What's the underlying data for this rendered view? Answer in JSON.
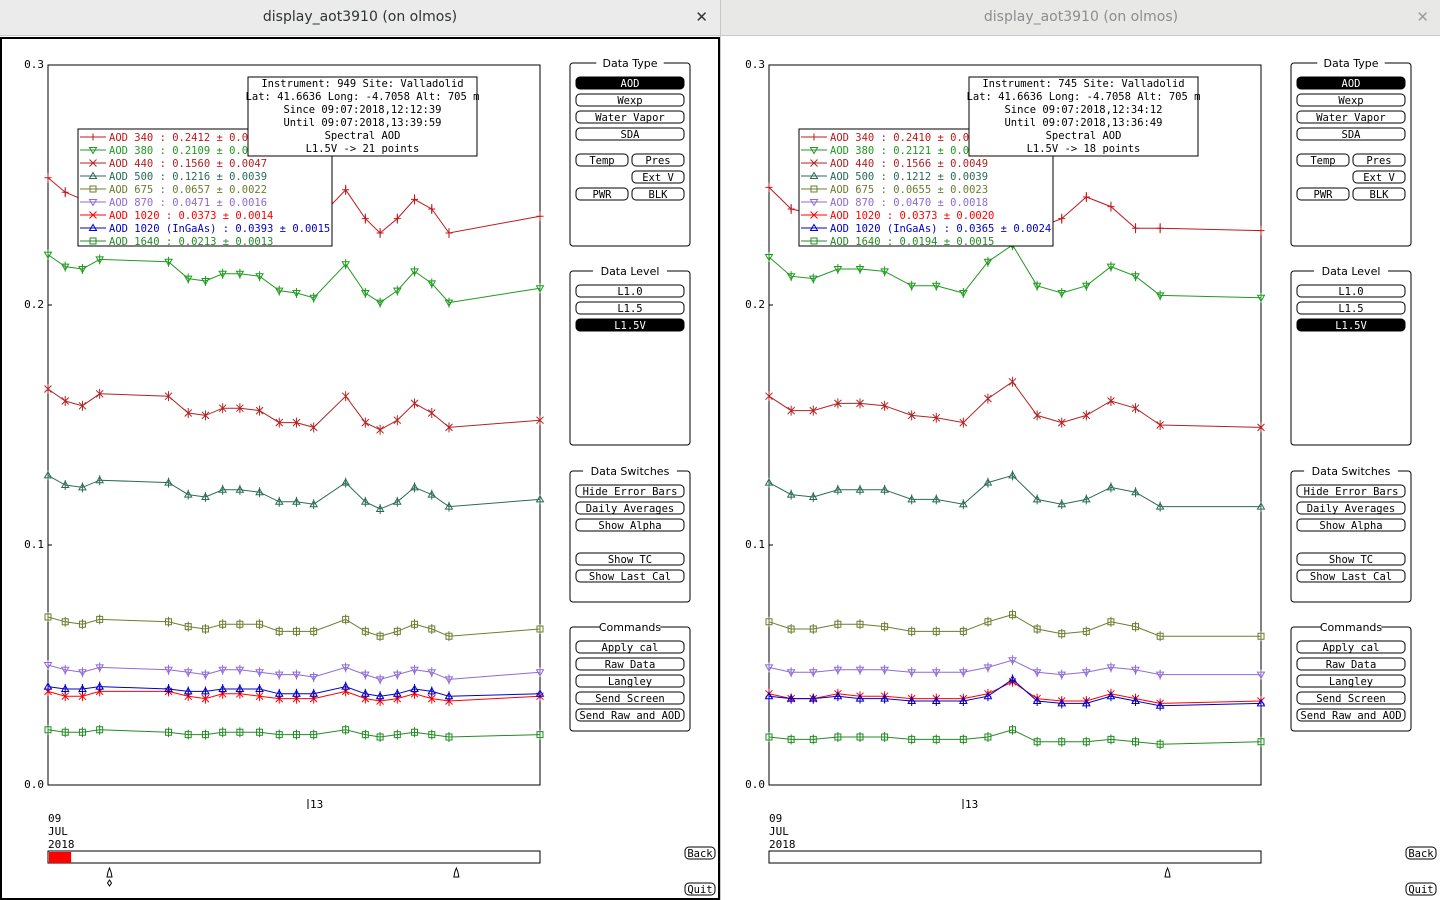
{
  "windows": [
    {
      "title": "display_aot3910 (on olmos)",
      "close": "✕",
      "active": true,
      "yticks": [
        "0.0",
        "0.1",
        "0.2",
        "0.3"
      ],
      "xtick": "13",
      "date": [
        "09",
        "JUL",
        "2018"
      ],
      "info": [
        "Instrument: 949 Site: Valladolid",
        "Lat: 41.6636 Long: -4.7058 Alt: 705 m",
        "Since 09:07:2018,12:12:39",
        "Until 09:07:2018,13:39:59",
        "Spectral AOD",
        "L1.5V -> 21 points"
      ],
      "legend": [
        {
          "label": "AOD 340   : 0.2412 ± 0.0",
          "color": "#c0171a",
          "marker": "plus"
        },
        {
          "label": "AOD 380   : 0.2109 ± 0.0",
          "color": "#1f9a1f",
          "marker": "tri-down"
        },
        {
          "label": "AOD 440   : 0.1560 ± 0.0047",
          "color": "#b22222",
          "marker": "x"
        },
        {
          "label": "AOD 500   : 0.1216 ± 0.0039",
          "color": "#2a6b57",
          "marker": "tri-up"
        },
        {
          "label": "AOD 675   : 0.0657 ± 0.0022",
          "color": "#6b7d2e",
          "marker": "square"
        },
        {
          "label": "AOD 870   : 0.0471 ± 0.0016",
          "color": "#8e6bd6",
          "marker": "tri-down"
        },
        {
          "label": "AOD 1020  : 0.0373 ± 0.0014",
          "color": "#ff0000",
          "marker": "x"
        },
        {
          "label": "AOD 1020 (InGaAs)  : 0.0393 ± 0.0015",
          "color": "#0000cc",
          "marker": "tri-up"
        },
        {
          "label": "AOD 1640  : 0.0213 ± 0.0013",
          "color": "#238b23",
          "marker": "square"
        }
      ],
      "panels": {
        "data_type": {
          "title": "Data Type",
          "rows": [
            [
              {
                "label": "AOD",
                "selected": true
              }
            ],
            [
              {
                "label": "Wexp"
              }
            ],
            [
              {
                "label": "Water Vapor"
              }
            ],
            [
              {
                "label": "SDA"
              }
            ],
            [
              {
                "label": "Temp"
              },
              {
                "label": "Pres"
              }
            ],
            [
              {
                "label": ""
              },
              {
                "label": "Ext V"
              }
            ],
            [
              {
                "label": "PWR"
              },
              {
                "label": "BLK"
              }
            ]
          ]
        },
        "data_level": {
          "title": "Data Level",
          "rows": [
            [
              {
                "label": "L1.0"
              }
            ],
            [
              {
                "label": "L1.5"
              }
            ],
            [
              {
                "label": "L1.5V",
                "selected": true
              }
            ]
          ]
        },
        "data_switches": {
          "title": "Data Switches",
          "rows": [
            [
              {
                "label": "Hide Error Bars"
              }
            ],
            [
              {
                "label": "Daily Averages"
              }
            ],
            [
              {
                "label": "Show Alpha"
              }
            ],
            [
              {
                "label": "Show TC"
              }
            ],
            [
              {
                "label": "Show Last Cal"
              }
            ]
          ]
        },
        "commands": {
          "title": "Commands",
          "rows": [
            [
              {
                "label": "Apply cal"
              }
            ],
            [
              {
                "label": "Raw Data"
              }
            ],
            [
              {
                "label": "Langley"
              }
            ],
            [
              {
                "label": "Send Screen"
              }
            ],
            [
              {
                "label": "Send Raw and AOD"
              }
            ]
          ]
        }
      },
      "back": "Back",
      "quit": "Quit",
      "timeline_fill": 0.045,
      "timeline_markers": [
        0.125,
        0.83
      ]
    },
    {
      "title": "display_aot3910 (on olmos)",
      "close": "✕",
      "active": false,
      "yticks": [
        "0.0",
        "0.1",
        "0.2",
        "0.3"
      ],
      "xtick": "13",
      "date": [
        "09",
        "JUL",
        "2018"
      ],
      "info": [
        "Instrument: 745 Site: Valladolid",
        "Lat: 41.6636 Long: -4.7058 Alt: 705 m",
        "Since 09:07:2018,12:34:12",
        "Until 09:07:2018,13:36:49",
        "Spectral AOD",
        "L1.5V -> 18 points"
      ],
      "legend": [
        {
          "label": "AOD 340   : 0.2410 ± 0.0",
          "color": "#c0171a",
          "marker": "plus"
        },
        {
          "label": "AOD 380   : 0.2121 ± 0.0",
          "color": "#1f9a1f",
          "marker": "tri-down"
        },
        {
          "label": "AOD 440   : 0.1566 ± 0.0049",
          "color": "#b22222",
          "marker": "x"
        },
        {
          "label": "AOD 500   : 0.1212 ± 0.0039",
          "color": "#2a6b57",
          "marker": "tri-up"
        },
        {
          "label": "AOD 675   : 0.0655 ± 0.0023",
          "color": "#6b7d2e",
          "marker": "square"
        },
        {
          "label": "AOD 870   : 0.0470 ± 0.0018",
          "color": "#8e6bd6",
          "marker": "tri-down"
        },
        {
          "label": "AOD 1020  : 0.0373 ± 0.0020",
          "color": "#ff0000",
          "marker": "x"
        },
        {
          "label": "AOD 1020 (InGaAs)  : 0.0365 ± 0.0024",
          "color": "#0000cc",
          "marker": "tri-up"
        },
        {
          "label": "AOD 1640  : 0.0194 ± 0.0015",
          "color": "#238b23",
          "marker": "square"
        }
      ],
      "panels": {
        "data_type": {
          "title": "Data Type",
          "rows": [
            [
              {
                "label": "AOD",
                "selected": true
              }
            ],
            [
              {
                "label": "Wexp"
              }
            ],
            [
              {
                "label": "Water Vapor"
              }
            ],
            [
              {
                "label": "SDA"
              }
            ],
            [
              {
                "label": "Temp"
              },
              {
                "label": "Pres"
              }
            ],
            [
              {
                "label": ""
              },
              {
                "label": "Ext V"
              }
            ],
            [
              {
                "label": "PWR"
              },
              {
                "label": "BLK"
              }
            ]
          ]
        },
        "data_level": {
          "title": "Data Level",
          "rows": [
            [
              {
                "label": "L1.0"
              }
            ],
            [
              {
                "label": "L1.5"
              }
            ],
            [
              {
                "label": "L1.5V",
                "selected": true
              }
            ]
          ]
        },
        "data_switches": {
          "title": "Data Switches",
          "rows": [
            [
              {
                "label": "Hide Error Bars"
              }
            ],
            [
              {
                "label": "Daily Averages"
              }
            ],
            [
              {
                "label": "Show Alpha"
              }
            ],
            [
              {
                "label": "Show TC"
              }
            ],
            [
              {
                "label": "Show Last Cal"
              }
            ]
          ]
        },
        "commands": {
          "title": "Commands",
          "rows": [
            [
              {
                "label": "Apply cal"
              }
            ],
            [
              {
                "label": "Raw Data"
              }
            ],
            [
              {
                "label": "Langley"
              }
            ],
            [
              {
                "label": "Send Screen"
              }
            ],
            [
              {
                "label": "Send Raw and AOD"
              }
            ]
          ]
        }
      },
      "back": "Back",
      "quit": "Quit",
      "timeline_fill": 0,
      "timeline_markers": [
        0.81
      ]
    }
  ],
  "chart_data": [
    {
      "type": "line",
      "ylim": [
        0,
        0.3
      ],
      "xlim": [
        0,
        1
      ],
      "x": [
        0.0,
        0.035,
        0.07,
        0.105,
        0.245,
        0.285,
        0.32,
        0.355,
        0.39,
        0.43,
        0.47,
        0.505,
        0.54,
        0.605,
        0.645,
        0.675,
        0.71,
        0.745,
        0.78,
        0.815,
        1.0
      ],
      "series": [
        {
          "name": "AOD 340",
          "color": "#c0171a",
          "marker": "plus",
          "values": [
            0.253,
            0.247,
            0.244,
            0.246,
            0.247,
            0.24,
            0.239,
            0.241,
            0.241,
            0.242,
            0.236,
            0.235,
            0.234,
            0.248,
            0.236,
            0.23,
            0.236,
            0.244,
            0.24,
            0.23,
            0.237
          ]
        },
        {
          "name": "AOD 380",
          "color": "#1f9a1f",
          "marker": "tri-down",
          "values": [
            0.221,
            0.216,
            0.215,
            0.219,
            0.218,
            0.211,
            0.21,
            0.213,
            0.213,
            0.212,
            0.206,
            0.205,
            0.203,
            0.217,
            0.205,
            0.201,
            0.206,
            0.214,
            0.209,
            0.201,
            0.207
          ]
        },
        {
          "name": "AOD 440",
          "color": "#b22222",
          "marker": "x",
          "values": [
            0.165,
            0.16,
            0.158,
            0.163,
            0.162,
            0.155,
            0.154,
            0.157,
            0.157,
            0.156,
            0.151,
            0.151,
            0.149,
            0.162,
            0.151,
            0.148,
            0.152,
            0.159,
            0.155,
            0.149,
            0.152
          ]
        },
        {
          "name": "AOD 500",
          "color": "#2a6b57",
          "marker": "tri-up",
          "values": [
            0.129,
            0.125,
            0.124,
            0.127,
            0.126,
            0.121,
            0.12,
            0.123,
            0.123,
            0.122,
            0.118,
            0.118,
            0.117,
            0.126,
            0.118,
            0.115,
            0.118,
            0.124,
            0.121,
            0.116,
            0.119
          ]
        },
        {
          "name": "AOD 675",
          "color": "#6b7d2e",
          "marker": "square",
          "values": [
            0.07,
            0.068,
            0.067,
            0.069,
            0.068,
            0.066,
            0.065,
            0.067,
            0.067,
            0.067,
            0.064,
            0.064,
            0.064,
            0.069,
            0.064,
            0.062,
            0.064,
            0.067,
            0.065,
            0.062,
            0.065
          ]
        },
        {
          "name": "AOD 870",
          "color": "#8e6bd6",
          "marker": "tri-down",
          "values": [
            0.05,
            0.048,
            0.047,
            0.049,
            0.048,
            0.047,
            0.046,
            0.048,
            0.048,
            0.047,
            0.046,
            0.046,
            0.045,
            0.049,
            0.046,
            0.044,
            0.046,
            0.048,
            0.047,
            0.044,
            0.047
          ]
        },
        {
          "name": "AOD 1020",
          "color": "#ff0000",
          "marker": "x",
          "values": [
            0.039,
            0.037,
            0.037,
            0.039,
            0.039,
            0.037,
            0.036,
            0.038,
            0.038,
            0.037,
            0.036,
            0.036,
            0.036,
            0.039,
            0.036,
            0.035,
            0.036,
            0.038,
            0.036,
            0.035,
            0.037
          ]
        },
        {
          "name": "AOD 1020 (InGaAs)",
          "color": "#0000cc",
          "marker": "tri-up",
          "values": [
            0.041,
            0.04,
            0.04,
            0.041,
            0.04,
            0.039,
            0.039,
            0.04,
            0.04,
            0.04,
            0.038,
            0.038,
            0.038,
            0.041,
            0.038,
            0.037,
            0.038,
            0.04,
            0.039,
            0.037,
            0.038
          ]
        },
        {
          "name": "AOD 1640",
          "color": "#238b23",
          "marker": "square",
          "values": [
            0.023,
            0.022,
            0.022,
            0.023,
            0.022,
            0.021,
            0.021,
            0.022,
            0.022,
            0.022,
            0.021,
            0.021,
            0.021,
            0.023,
            0.021,
            0.02,
            0.021,
            0.022,
            0.021,
            0.02,
            0.021
          ]
        }
      ]
    },
    {
      "type": "line",
      "ylim": [
        0,
        0.3
      ],
      "xlim": [
        0,
        1
      ],
      "x": [
        0.0,
        0.045,
        0.09,
        0.14,
        0.185,
        0.235,
        0.29,
        0.34,
        0.395,
        0.445,
        0.495,
        0.545,
        0.595,
        0.645,
        0.695,
        0.745,
        0.795,
        1.0
      ],
      "series": [
        {
          "name": "AOD 340",
          "color": "#c0171a",
          "marker": "plus",
          "values": [
            0.249,
            0.24,
            0.238,
            0.24,
            0.238,
            0.24,
            0.236,
            0.237,
            0.232,
            0.241,
            0.236,
            0.232,
            0.236,
            0.245,
            0.241,
            0.232,
            0.232,
            0.231
          ]
        },
        {
          "name": "AOD 380",
          "color": "#1f9a1f",
          "marker": "tri-down",
          "values": [
            0.22,
            0.212,
            0.211,
            0.215,
            0.215,
            0.214,
            0.208,
            0.208,
            0.205,
            0.218,
            0.225,
            0.208,
            0.205,
            0.208,
            0.216,
            0.212,
            0.204,
            0.203
          ]
        },
        {
          "name": "AOD 440",
          "color": "#b22222",
          "marker": "x",
          "values": [
            0.162,
            0.156,
            0.156,
            0.159,
            0.159,
            0.158,
            0.154,
            0.153,
            0.151,
            0.161,
            0.168,
            0.154,
            0.151,
            0.154,
            0.16,
            0.157,
            0.15,
            0.149
          ]
        },
        {
          "name": "AOD 500",
          "color": "#2a6b57",
          "marker": "tri-up",
          "values": [
            0.126,
            0.121,
            0.12,
            0.123,
            0.123,
            0.123,
            0.119,
            0.119,
            0.117,
            0.126,
            0.129,
            0.119,
            0.117,
            0.119,
            0.124,
            0.122,
            0.116,
            0.116
          ]
        },
        {
          "name": "AOD 675",
          "color": "#6b7d2e",
          "marker": "square",
          "values": [
            0.068,
            0.065,
            0.065,
            0.067,
            0.067,
            0.066,
            0.064,
            0.064,
            0.064,
            0.068,
            0.071,
            0.065,
            0.063,
            0.064,
            0.068,
            0.066,
            0.062,
            0.062
          ]
        },
        {
          "name": "AOD 870",
          "color": "#8e6bd6",
          "marker": "tri-down",
          "values": [
            0.049,
            0.047,
            0.047,
            0.048,
            0.048,
            0.048,
            0.047,
            0.047,
            0.047,
            0.049,
            0.052,
            0.047,
            0.046,
            0.047,
            0.049,
            0.048,
            0.046,
            0.046
          ]
        },
        {
          "name": "AOD 1020",
          "color": "#ff0000",
          "marker": "x",
          "values": [
            0.038,
            0.036,
            0.036,
            0.038,
            0.037,
            0.037,
            0.036,
            0.036,
            0.036,
            0.038,
            0.043,
            0.036,
            0.035,
            0.035,
            0.038,
            0.036,
            0.034,
            0.035
          ]
        },
        {
          "name": "AOD 1020 (InGaAs)",
          "color": "#0000cc",
          "marker": "tri-up",
          "values": [
            0.037,
            0.036,
            0.036,
            0.037,
            0.036,
            0.036,
            0.035,
            0.035,
            0.035,
            0.037,
            0.044,
            0.035,
            0.034,
            0.034,
            0.037,
            0.035,
            0.033,
            0.034
          ]
        },
        {
          "name": "AOD 1640",
          "color": "#238b23",
          "marker": "square",
          "values": [
            0.02,
            0.019,
            0.019,
            0.02,
            0.02,
            0.02,
            0.019,
            0.019,
            0.019,
            0.02,
            0.023,
            0.018,
            0.018,
            0.018,
            0.019,
            0.018,
            0.017,
            0.018
          ]
        }
      ]
    }
  ]
}
